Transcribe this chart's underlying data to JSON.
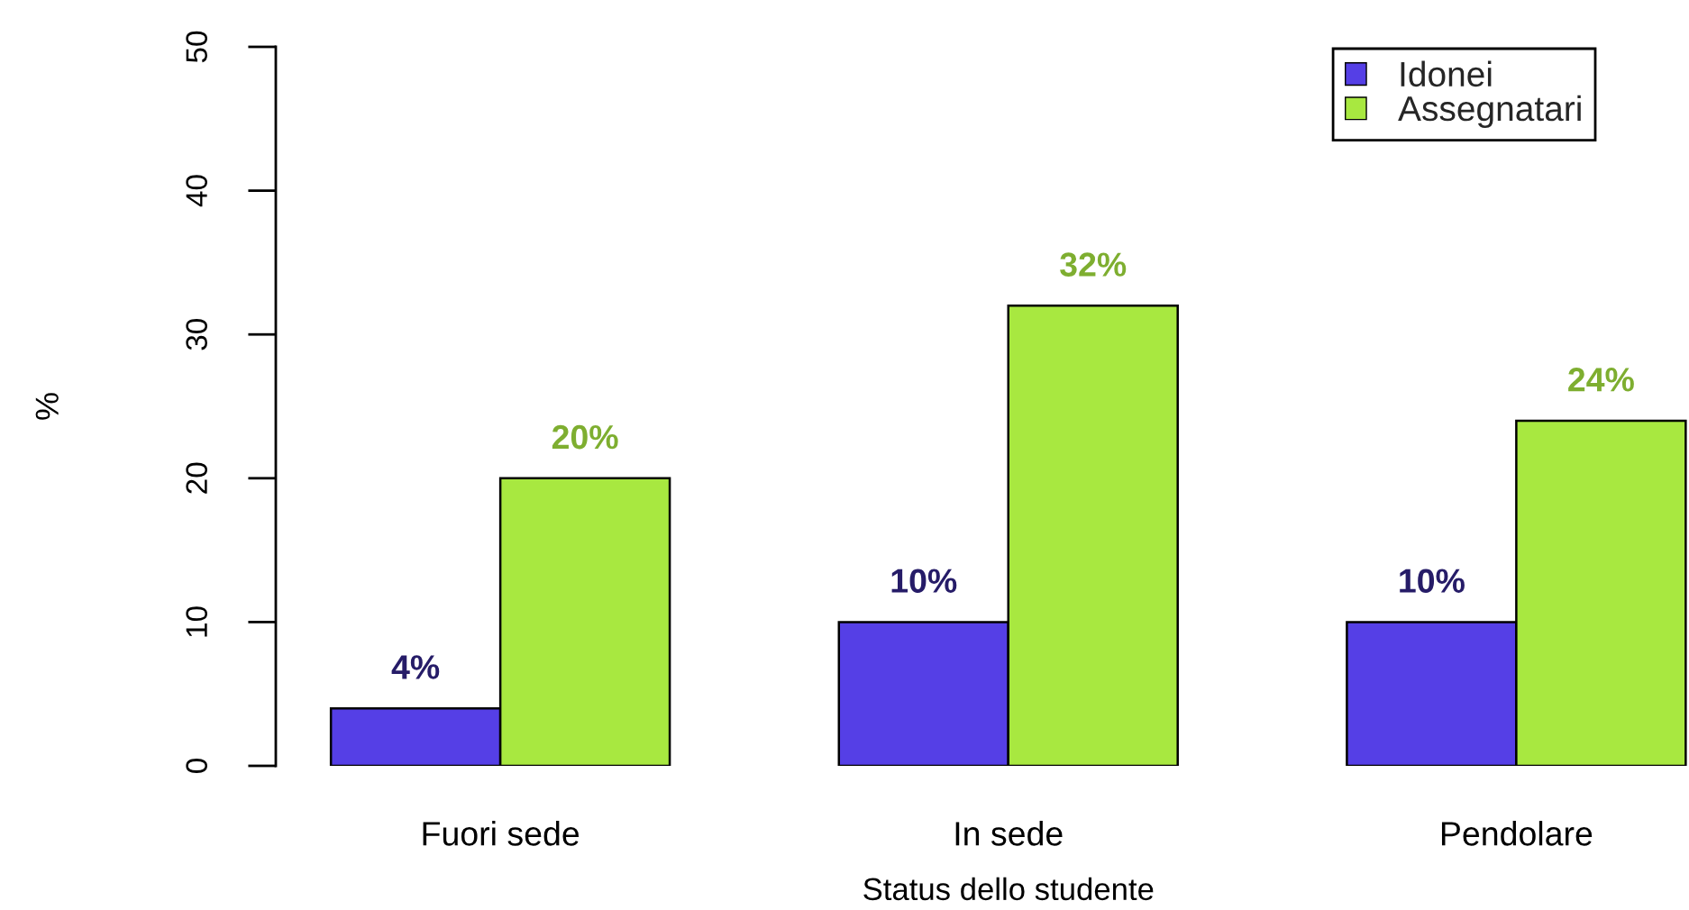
{
  "chart_data": {
    "type": "bar",
    "xlabel": "Status dello studente",
    "ylabel": "%",
    "categories": [
      "Fuori sede",
      "In sede",
      "Pendolare"
    ],
    "series": [
      {
        "name": "Idonei",
        "color": "#553fe6",
        "values": [
          4,
          10,
          10
        ],
        "value_labels": [
          "4%",
          "10%",
          "10%"
        ]
      },
      {
        "name": "Assegnatari",
        "color": "#a8e840",
        "values": [
          20,
          32,
          24
        ],
        "value_labels": [
          "20%",
          "32%",
          "24%"
        ]
      }
    ],
    "ylim": [
      0,
      50
    ],
    "yticks": [
      0,
      10,
      20,
      30,
      40,
      50
    ],
    "legend": "top right"
  }
}
